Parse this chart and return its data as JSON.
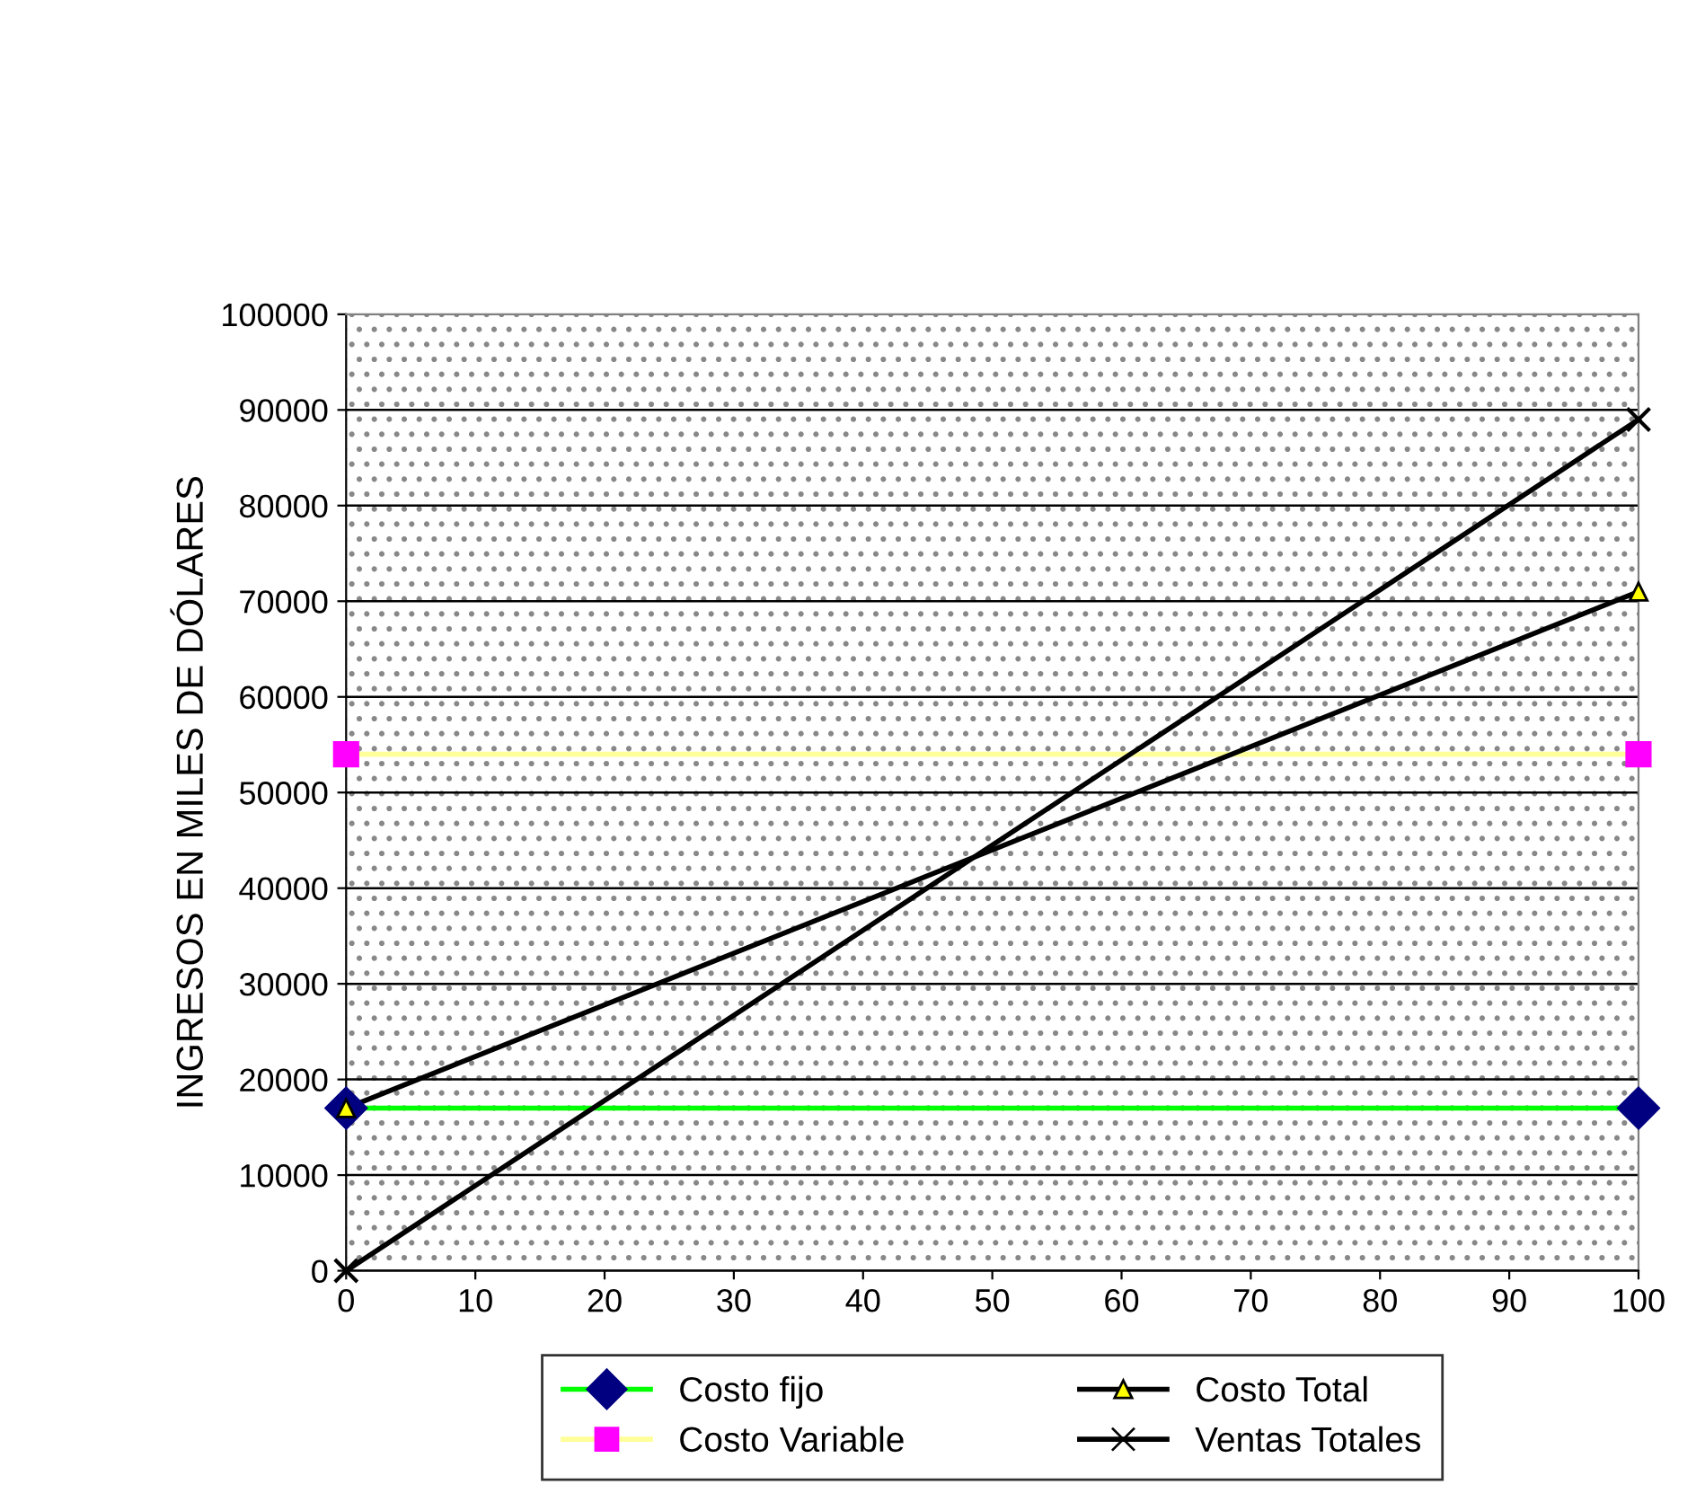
{
  "chart_data": {
    "type": "line",
    "ylabel": "INGRESOS EN MILES DE DÓLARES",
    "x": [
      0,
      100
    ],
    "series": [
      {
        "name": "Costo fijo",
        "color": "#00ff00",
        "colors": [
          "#000080",
          "#000080"
        ],
        "marker": "diamond",
        "values": [
          17000,
          17000
        ]
      },
      {
        "name": "Costo Variable",
        "color": "#ffff99",
        "colors": [
          "#ff00ff",
          "#ff00ff"
        ],
        "marker": "square",
        "values": [
          54000,
          54000
        ]
      },
      {
        "name": "Costo Total",
        "color": "#000000",
        "colors": [
          "#ffff00",
          "#ffff00"
        ],
        "marker": "triangle",
        "values": [
          17000,
          71000
        ]
      },
      {
        "name": "Ventas Totales",
        "color": "#000000",
        "colors": [
          "#000000",
          "#000000"
        ],
        "marker": "cross",
        "values": [
          0,
          89000
        ]
      }
    ],
    "xlim": [
      0,
      100
    ],
    "xticks": [
      0,
      10,
      20,
      30,
      40,
      50,
      60,
      70,
      80,
      90,
      100
    ],
    "ylim": [
      0,
      100000
    ],
    "yticks": [
      0,
      10000,
      20000,
      30000,
      40000,
      50000,
      60000,
      70000,
      80000,
      90000,
      100000
    ],
    "grid": "y",
    "legend": "bottom",
    "line_style": "solid"
  }
}
